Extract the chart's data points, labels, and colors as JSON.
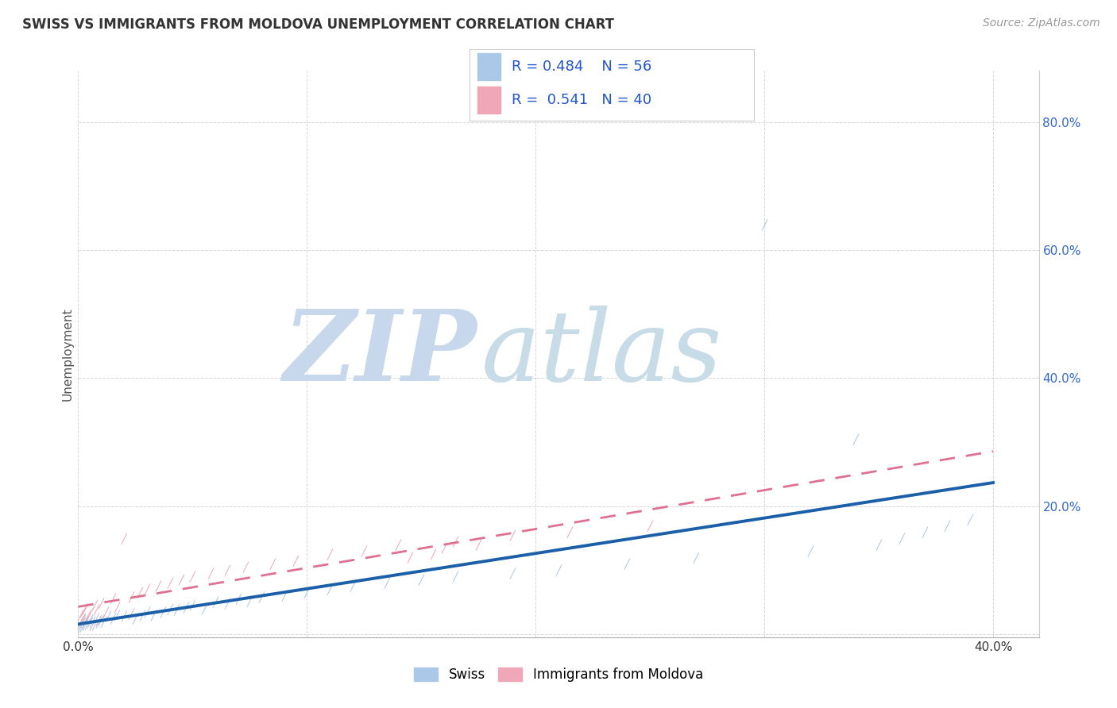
{
  "title": "SWISS VS IMMIGRANTS FROM MOLDOVA UNEMPLOYMENT CORRELATION CHART",
  "source_text": "Source: ZipAtlas.com",
  "ylabel": "Unemployment",
  "xlim": [
    0.0,
    0.42
  ],
  "ylim": [
    -0.005,
    0.88
  ],
  "xticks": [
    0.0,
    0.1,
    0.2,
    0.3,
    0.4
  ],
  "yticks": [
    0.0,
    0.2,
    0.4,
    0.6,
    0.8
  ],
  "xticklabels": [
    "0.0%",
    "",
    "",
    "",
    "40.0%"
  ],
  "yticklabels": [
    "",
    "20.0%",
    "40.0%",
    "60.0%",
    "80.0%"
  ],
  "ytick_color": "#3366cc",
  "xtick_color": "#333333",
  "swiss_color": "#aac8e8",
  "moldova_color": "#f0a8b8",
  "swiss_line_color": "#1a5fa8",
  "moldova_line_color": "#e07090",
  "legend_r_swiss": "R = 0.484",
  "legend_n_swiss": "N = 56",
  "legend_r_moldova": "R =  0.541",
  "legend_n_moldova": "N = 40",
  "swiss_x": [
    0.001,
    0.001,
    0.002,
    0.002,
    0.002,
    0.003,
    0.003,
    0.004,
    0.004,
    0.005,
    0.005,
    0.006,
    0.007,
    0.008,
    0.009,
    0.01,
    0.011,
    0.013,
    0.015,
    0.017,
    0.02,
    0.023,
    0.025,
    0.028,
    0.03,
    0.033,
    0.037,
    0.04,
    0.043,
    0.047,
    0.05,
    0.055,
    0.06,
    0.065,
    0.07,
    0.075,
    0.08,
    0.09,
    0.1,
    0.11,
    0.12,
    0.135,
    0.15,
    0.165,
    0.19,
    0.21,
    0.24,
    0.27,
    0.3,
    0.32,
    0.34,
    0.35,
    0.36,
    0.37,
    0.38,
    0.39
  ],
  "swiss_y": [
    0.01,
    0.015,
    0.012,
    0.018,
    0.022,
    0.014,
    0.02,
    0.016,
    0.025,
    0.018,
    0.022,
    0.02,
    0.015,
    0.025,
    0.018,
    0.022,
    0.02,
    0.028,
    0.025,
    0.03,
    0.028,
    0.032,
    0.025,
    0.03,
    0.035,
    0.03,
    0.035,
    0.04,
    0.038,
    0.042,
    0.045,
    0.04,
    0.05,
    0.048,
    0.055,
    0.052,
    0.058,
    0.06,
    0.065,
    0.07,
    0.075,
    0.08,
    0.085,
    0.09,
    0.095,
    0.1,
    0.11,
    0.12,
    0.64,
    0.13,
    0.305,
    0.14,
    0.15,
    0.16,
    0.17,
    0.18
  ],
  "moldova_x": [
    0.001,
    0.001,
    0.002,
    0.002,
    0.003,
    0.003,
    0.004,
    0.005,
    0.006,
    0.007,
    0.008,
    0.009,
    0.01,
    0.012,
    0.015,
    0.017,
    0.02,
    0.023,
    0.027,
    0.03,
    0.035,
    0.04,
    0.045,
    0.05,
    0.058,
    0.065,
    0.073,
    0.085,
    0.095,
    0.11,
    0.125,
    0.14,
    0.165,
    0.19,
    0.215,
    0.25,
    0.145,
    0.16,
    0.155,
    0.175
  ],
  "moldova_y": [
    0.02,
    0.03,
    0.025,
    0.035,
    0.018,
    0.04,
    0.028,
    0.032,
    0.015,
    0.045,
    0.038,
    0.022,
    0.048,
    0.035,
    0.055,
    0.042,
    0.15,
    0.058,
    0.065,
    0.07,
    0.075,
    0.08,
    0.085,
    0.09,
    0.095,
    0.1,
    0.105,
    0.11,
    0.115,
    0.125,
    0.13,
    0.14,
    0.145,
    0.155,
    0.16,
    0.17,
    0.12,
    0.135,
    0.125,
    0.14
  ],
  "background_color": "#ffffff",
  "grid_color": "#cccccc",
  "title_color": "#333333",
  "title_fontsize": 12,
  "tick_fontsize": 11,
  "watermark_color_zip": "#c8d8ec",
  "watermark_color_atlas": "#c8dce8"
}
